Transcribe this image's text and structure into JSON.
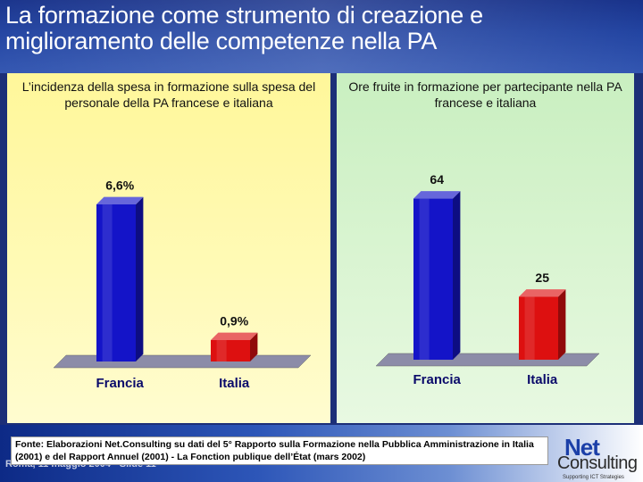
{
  "title": "La formazione come strumento di creazione e miglioramento delle competenze nella PA",
  "source": "Fonte: Elaborazioni Net.Consulting su dati del 5° Rapporto sulla Formazione nella Pubblica Amministrazione in Italia (2001) e del Rapport Annuel (2001) - La Fonction publique dell’État (mars 2002)",
  "footer_date": "Roma, 11 maggio 2004 - Slide 11",
  "logo": {
    "net": "Net",
    "consulting": "Consulting",
    "tagline": "Supporting ICT Strategies"
  },
  "colors": {
    "francia": "#1414c8",
    "italia": "#dd1010",
    "floor": "#8c8ca8"
  },
  "chart_data": [
    {
      "type": "bar",
      "title": "L’incidenza della spesa in formazione sulla spesa del personale della PA francese e italiana",
      "categories": [
        "Francia",
        "Italia"
      ],
      "values": [
        6.6,
        0.9
      ],
      "data_labels": [
        "6,6%",
        "0,9%"
      ],
      "ylim": [
        0,
        7.5
      ],
      "xlabel": "",
      "ylabel": "",
      "grid": false,
      "legend": "none"
    },
    {
      "type": "bar",
      "title": "Ore fruite in formazione per partecipante nella PA francese e italiana",
      "categories": [
        "Francia",
        "Italia"
      ],
      "values": [
        64,
        25
      ],
      "data_labels": [
        "64",
        "25"
      ],
      "ylim": [
        0,
        72
      ],
      "xlabel": "",
      "ylabel": "",
      "grid": false,
      "legend": "none"
    }
  ]
}
